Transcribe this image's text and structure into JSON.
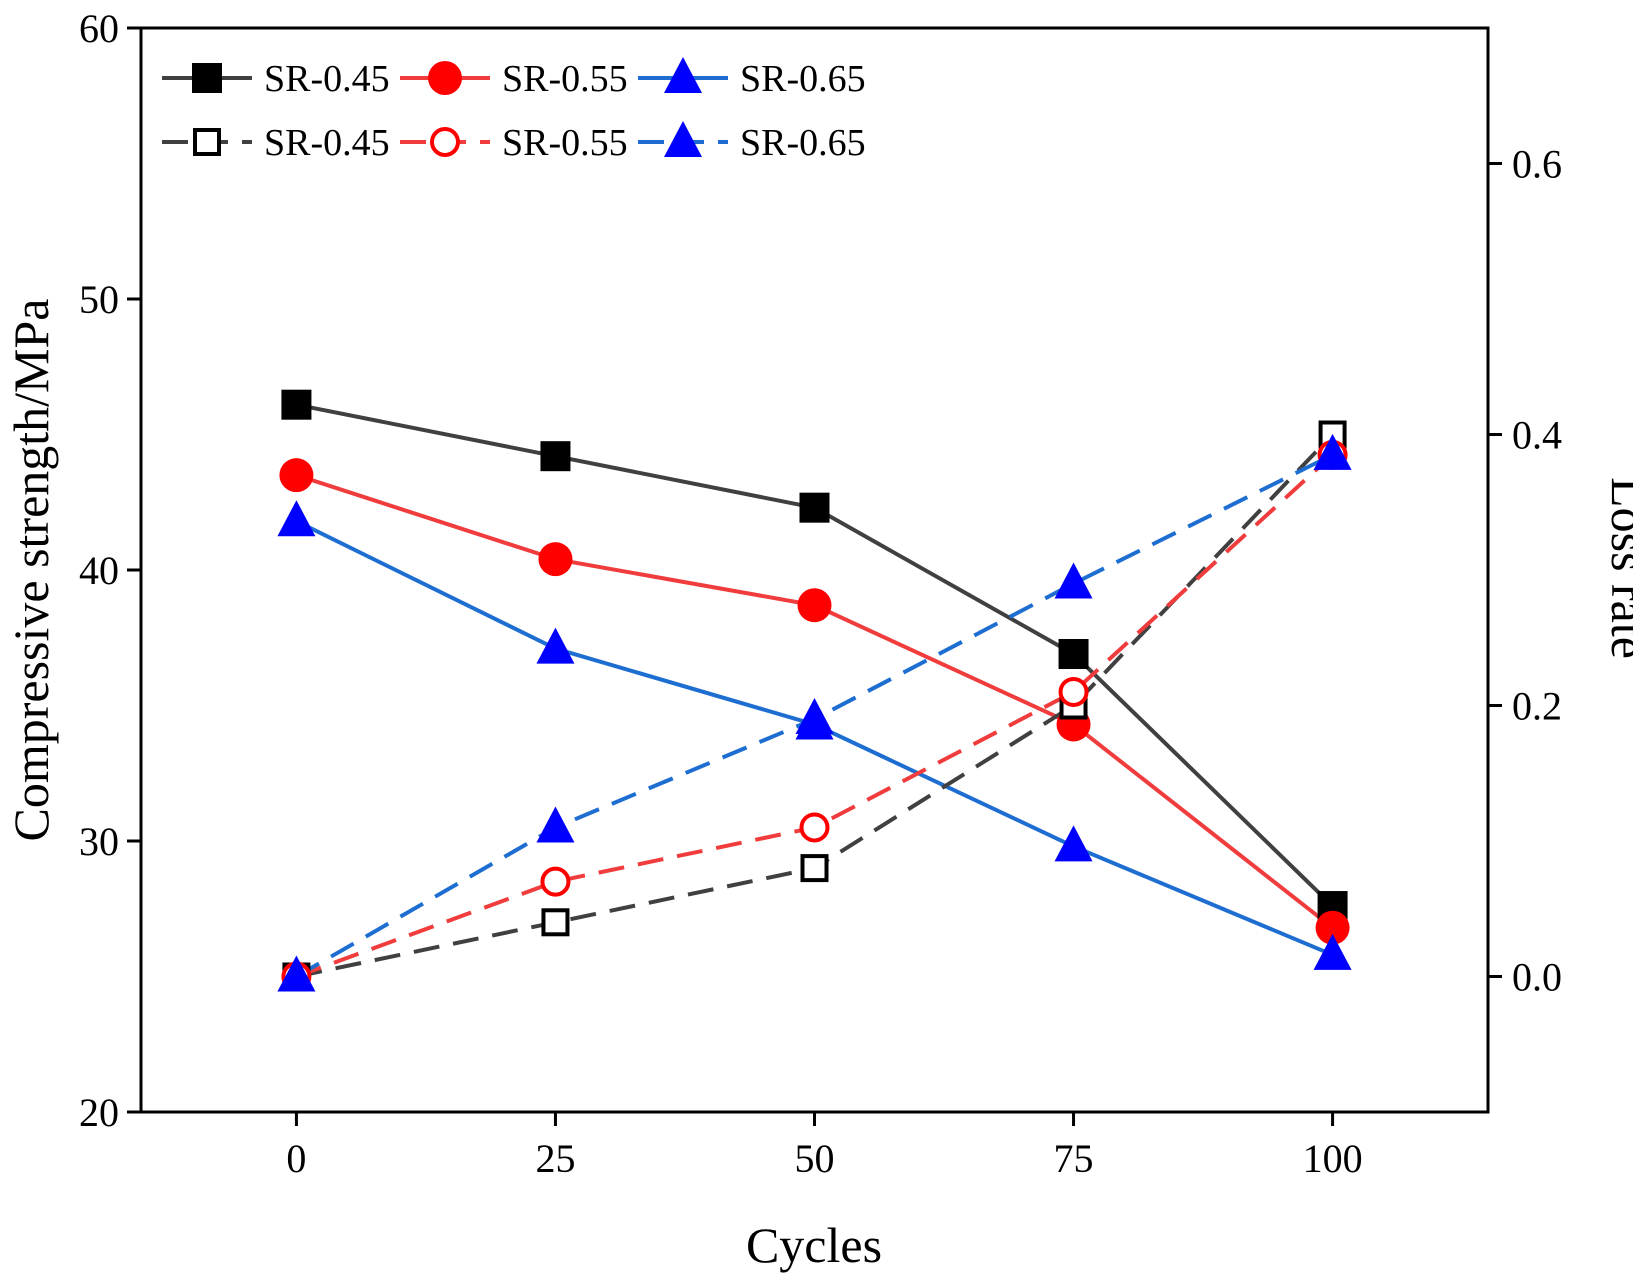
{
  "chart_data": {
    "type": "line",
    "title": "",
    "xlabel": "Cycles",
    "ylabel_left": "Compressive strength/MPa",
    "ylabel_right": "Loss rate",
    "x": [
      0,
      25,
      50,
      75,
      100
    ],
    "x_ticks": [
      "0",
      "25",
      "50",
      "75",
      "100"
    ],
    "xlim": [
      -15,
      115
    ],
    "ylim_left": [
      20,
      60
    ],
    "ylim_right": [
      -0.1,
      0.7
    ],
    "y_left_ticks": [
      "20",
      "30",
      "40",
      "50",
      "60"
    ],
    "y_right_ticks": [
      "0.0",
      "0.2",
      "0.4",
      "0.6"
    ],
    "legend_position": "top-left",
    "series": [
      {
        "name": "SR-0.45",
        "axis": "left",
        "style": "solid",
        "marker": "square-filled",
        "color": "#000000",
        "line_color": "#404040",
        "values": [
          46.1,
          44.2,
          42.3,
          36.9,
          27.6
        ]
      },
      {
        "name": "SR-0.55",
        "axis": "left",
        "style": "solid",
        "marker": "circle-filled",
        "color": "#ff0000",
        "line_color": "#f03c3c",
        "values": [
          43.5,
          40.4,
          38.7,
          34.3,
          26.8
        ]
      },
      {
        "name": "SR-0.65",
        "axis": "left",
        "style": "solid",
        "marker": "triangle-filled",
        "color": "#0000ff",
        "line_color": "#1e6ed2",
        "values": [
          41.8,
          37.1,
          34.3,
          29.8,
          25.8
        ]
      },
      {
        "name": "SR-0.45",
        "axis": "right",
        "style": "dashed",
        "marker": "square-open",
        "color": "#000000",
        "line_color": "#404040",
        "values": [
          0.0,
          0.04,
          0.08,
          0.2,
          0.4
        ]
      },
      {
        "name": "SR-0.55",
        "axis": "right",
        "style": "dashed",
        "marker": "circle-open",
        "color": "#ff0000",
        "line_color": "#f03c3c",
        "values": [
          0.0,
          0.07,
          0.11,
          0.21,
          0.385
        ]
      },
      {
        "name": "SR-0.65",
        "axis": "right",
        "style": "dashed",
        "marker": "triangle-filled",
        "color": "#0000ff",
        "line_color": "#1e6ed2",
        "values": [
          0.0,
          0.11,
          0.19,
          0.29,
          0.385
        ]
      }
    ]
  }
}
